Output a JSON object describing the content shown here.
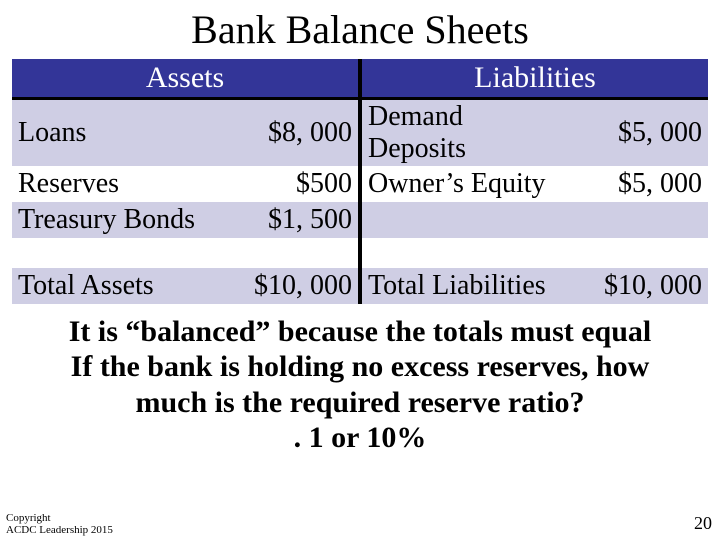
{
  "title": "Bank Balance Sheets",
  "headers": {
    "assets": "Assets",
    "liabilities": "Liabilities"
  },
  "assets": {
    "rows": [
      {
        "label": "Loans",
        "value": "$8, 000"
      },
      {
        "label": "Reserves",
        "value": "$500"
      },
      {
        "label": "Treasury Bonds",
        "value": "$1, 500"
      }
    ],
    "total_label": "Total Assets",
    "total_value": "$10, 000"
  },
  "liabilities": {
    "rows": [
      {
        "label": "Demand Deposits",
        "value": "$5, 000"
      },
      {
        "label": "Owner’s Equity",
        "value": "$5, 000"
      },
      {
        "label": "",
        "value": ""
      }
    ],
    "total_label": "Total Liabilities",
    "total_value": "$10, 000"
  },
  "explain": {
    "line1": "It is “balanced” because the totals must equal",
    "line2": "If the bank is holding no excess reserves, how",
    "line3": "much is the required reserve ratio?",
    "line4": ". 1 or 10%"
  },
  "footer": {
    "line1": "Copyright",
    "line2": "ACDC Leadership 2015"
  },
  "page_number": "20",
  "colors": {
    "header_bg": "#333598",
    "row_shade": "#cfcee4",
    "divider": "#000000",
    "background": "#ffffff"
  }
}
